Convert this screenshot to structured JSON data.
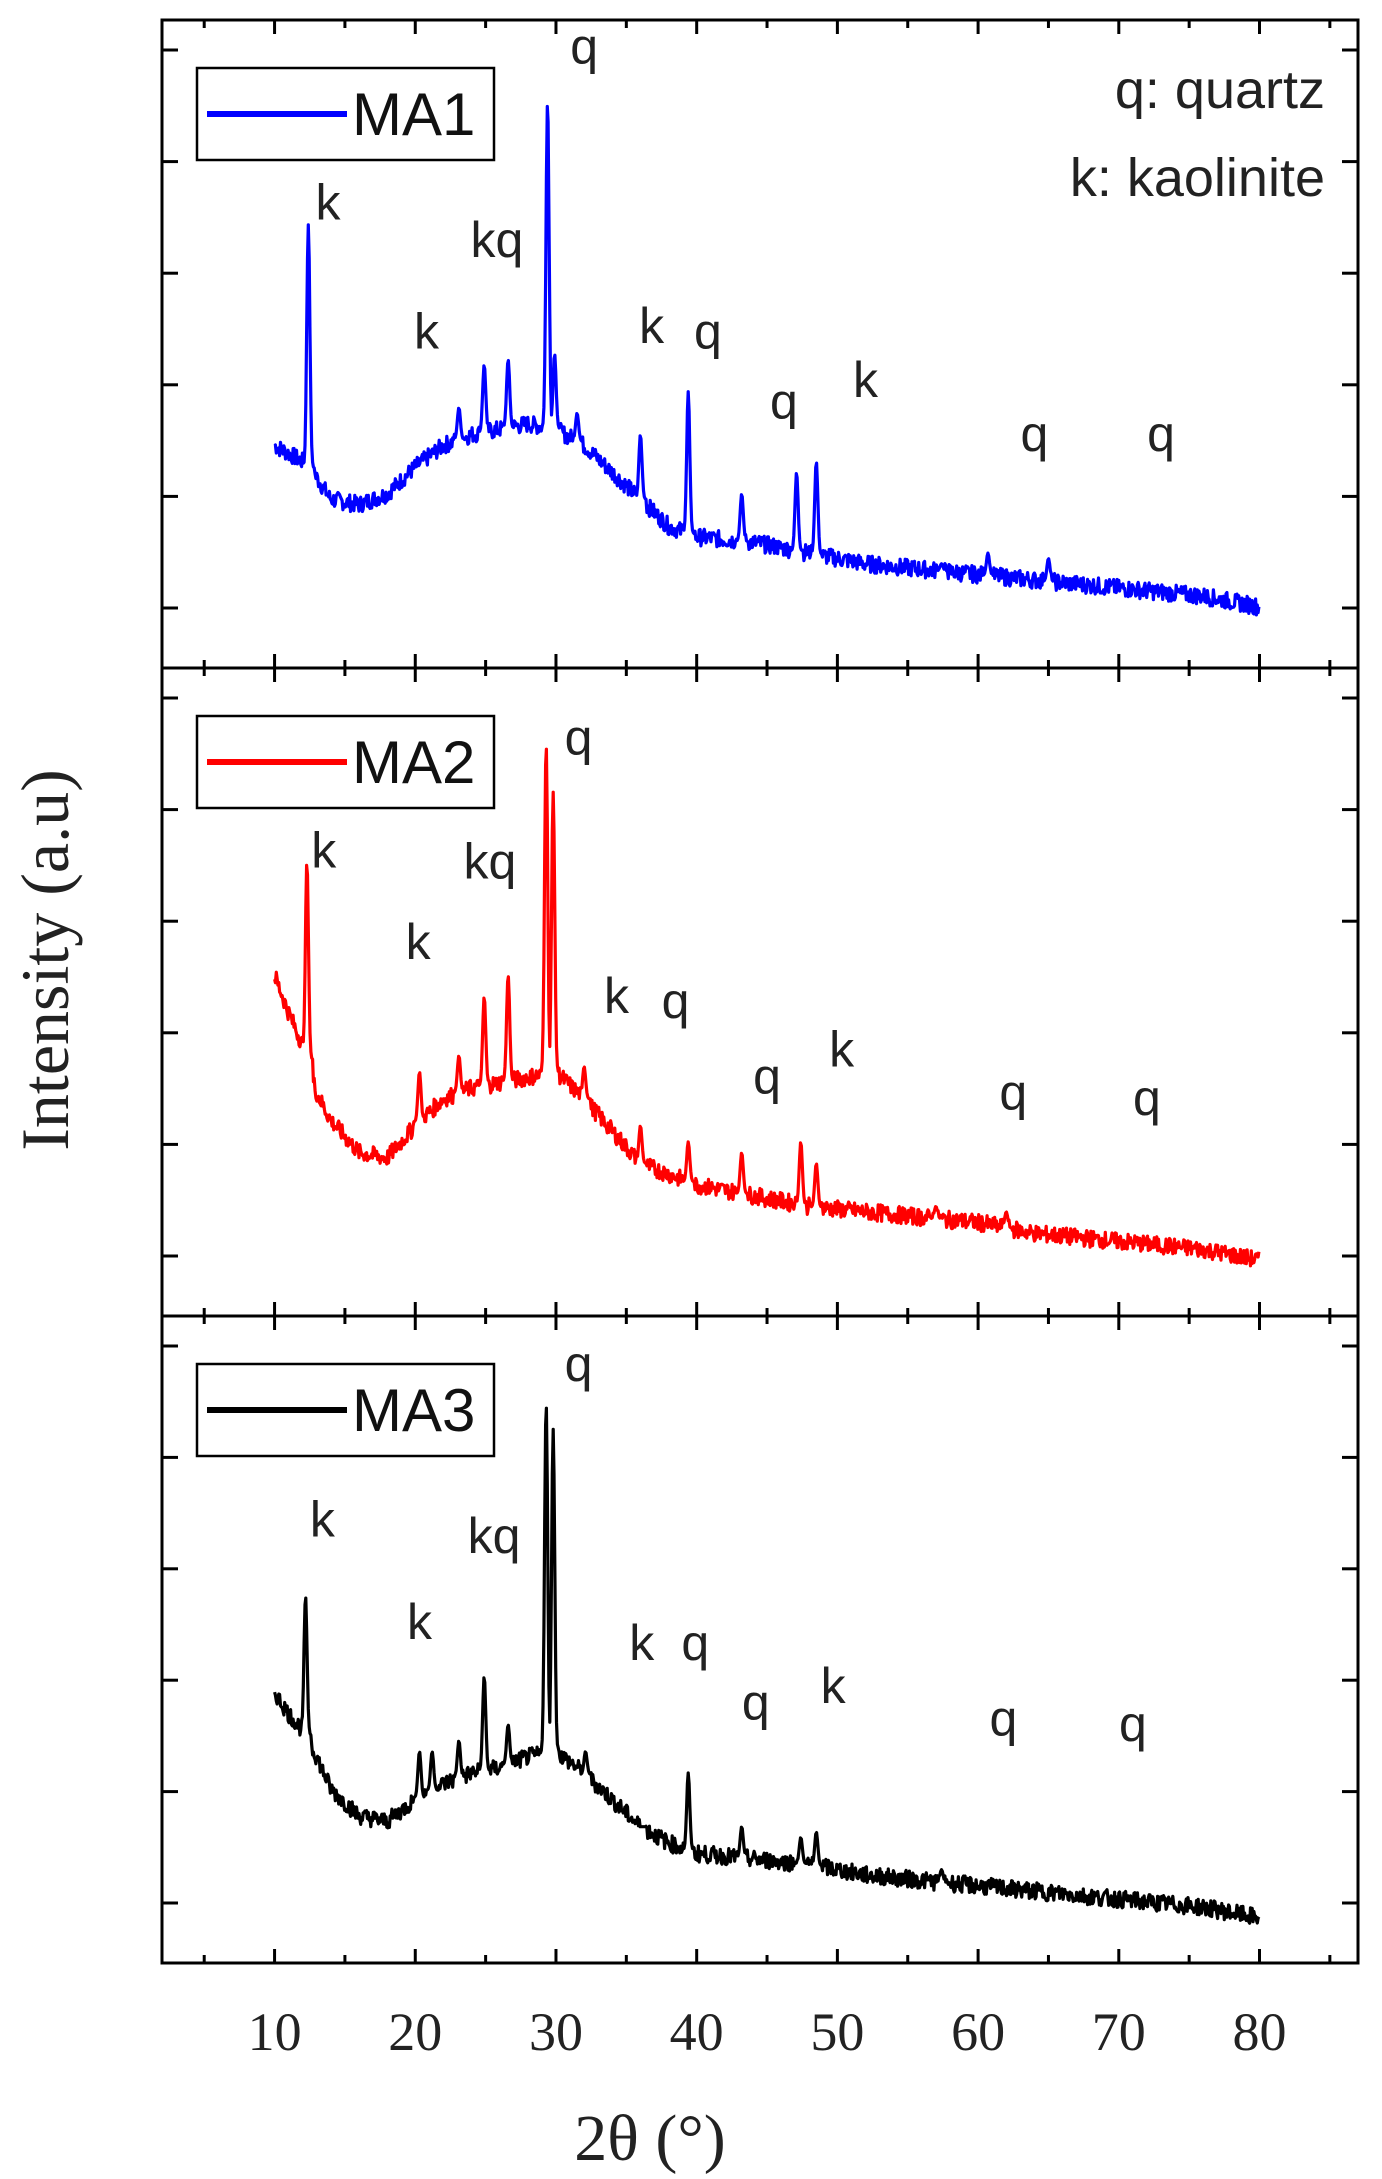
{
  "figure": {
    "ylabel": "Intensity (a.u)",
    "xlabel": "2θ (°)",
    "annotation_lines": [
      "q: quartz",
      "k: kaolinite"
    ]
  },
  "colors": {
    "MA1": "#0000ff",
    "MA2": "#ff0000",
    "MA3": "#000000",
    "frame": "#000000",
    "text": "#222222"
  },
  "chart_data": {
    "type": "line",
    "title": "",
    "xlabel": "2θ (°)",
    "ylabel": "Intensity (a.u)",
    "xlim": [
      2,
      87
    ],
    "xticks": [
      10,
      20,
      30,
      40,
      50,
      60,
      70,
      80
    ],
    "x_range": [
      10,
      80
    ],
    "grid": false,
    "stacked_panels": true,
    "panels": [
      {
        "name": "MA1",
        "legend": "MA1",
        "legend_position": "top-left",
        "ylim": [
          0,
          100
        ],
        "baseline": [
          [
            10,
            33
          ],
          [
            12,
            30
          ],
          [
            13,
            27
          ],
          [
            14,
            23
          ],
          [
            16,
            22
          ],
          [
            18,
            24
          ],
          [
            20,
            29
          ],
          [
            22,
            33
          ],
          [
            24,
            35
          ],
          [
            26,
            36
          ],
          [
            28,
            37
          ],
          [
            30,
            36
          ],
          [
            32,
            33
          ],
          [
            34,
            28
          ],
          [
            36,
            23
          ],
          [
            38,
            18
          ],
          [
            40,
            16
          ],
          [
            44,
            15
          ],
          [
            48,
            13
          ],
          [
            52,
            11
          ],
          [
            56,
            10
          ],
          [
            60,
            9
          ],
          [
            64,
            8
          ],
          [
            68,
            7
          ],
          [
            72,
            6
          ],
          [
            76,
            5
          ],
          [
            80,
            3
          ]
        ],
        "peaks": [
          {
            "x": 12.4,
            "y": 74,
            "label": "k"
          },
          {
            "x": 23.1,
            "y": 40
          },
          {
            "x": 24.9,
            "y": 48
          },
          {
            "x": 26.6,
            "y": 49
          },
          {
            "x": 29.4,
            "y": 97,
            "label": "q"
          },
          {
            "x": 29.9,
            "y": 50
          },
          {
            "x": 31.5,
            "y": 39
          },
          {
            "x": 36.0,
            "y": 35,
            "label": "k"
          },
          {
            "x": 39.4,
            "y": 43,
            "label": "q"
          },
          {
            "x": 43.2,
            "y": 24
          },
          {
            "x": 47.1,
            "y": 28
          },
          {
            "x": 48.5,
            "y": 30
          },
          {
            "x": 57.4,
            "y": 11
          },
          {
            "x": 60.7,
            "y": 13
          },
          {
            "x": 65.0,
            "y": 12
          }
        ],
        "labels": [
          {
            "text": "k",
            "x": 13.8,
            "y": 75
          },
          {
            "text": "k",
            "x": 20.8,
            "y": 51
          },
          {
            "text": "kq",
            "x": 25.8,
            "y": 68
          },
          {
            "text": "q",
            "x": 32.0,
            "y": 104
          },
          {
            "text": "k",
            "x": 36.8,
            "y": 52
          },
          {
            "text": "q",
            "x": 40.8,
            "y": 51
          },
          {
            "text": "q",
            "x": 46.2,
            "y": 38
          },
          {
            "text": "k",
            "x": 52.0,
            "y": 42
          },
          {
            "text": "q",
            "x": 64.0,
            "y": 32
          },
          {
            "text": "q",
            "x": 73.0,
            "y": 32
          }
        ]
      },
      {
        "name": "MA2",
        "legend": "MA2",
        "legend_position": "top-left",
        "ylim": [
          0,
          100
        ],
        "baseline": [
          [
            10,
            55
          ],
          [
            11,
            48
          ],
          [
            12,
            42
          ],
          [
            13,
            33
          ],
          [
            14,
            28
          ],
          [
            16,
            22
          ],
          [
            18,
            21
          ],
          [
            20,
            27
          ],
          [
            22,
            32
          ],
          [
            24,
            34
          ],
          [
            26,
            35
          ],
          [
            28,
            36
          ],
          [
            30,
            37
          ],
          [
            32,
            32
          ],
          [
            34,
            26
          ],
          [
            36,
            20
          ],
          [
            38,
            18
          ],
          [
            40,
            16
          ],
          [
            44,
            14
          ],
          [
            48,
            12
          ],
          [
            52,
            11
          ],
          [
            56,
            10
          ],
          [
            60,
            9
          ],
          [
            64,
            7
          ],
          [
            68,
            6
          ],
          [
            72,
            5
          ],
          [
            76,
            4
          ],
          [
            80,
            2
          ]
        ],
        "peaks": [
          {
            "x": 12.3,
            "y": 76,
            "label": "k"
          },
          {
            "x": 20.3,
            "y": 37
          },
          {
            "x": 23.1,
            "y": 40
          },
          {
            "x": 24.9,
            "y": 51
          },
          {
            "x": 26.6,
            "y": 55
          },
          {
            "x": 29.3,
            "y": 98,
            "label": "q"
          },
          {
            "x": 29.8,
            "y": 89
          },
          {
            "x": 32.0,
            "y": 38
          },
          {
            "x": 36.0,
            "y": 27,
            "label": "k"
          },
          {
            "x": 39.4,
            "y": 24,
            "label": "q"
          },
          {
            "x": 43.2,
            "y": 22
          },
          {
            "x": 47.4,
            "y": 24
          },
          {
            "x": 48.5,
            "y": 20
          },
          {
            "x": 57.0,
            "y": 12
          },
          {
            "x": 62.0,
            "y": 11
          }
        ],
        "labels": [
          {
            "text": "k",
            "x": 13.5,
            "y": 75
          },
          {
            "text": "k",
            "x": 20.2,
            "y": 58
          },
          {
            "text": "kq",
            "x": 25.3,
            "y": 73
          },
          {
            "text": "q",
            "x": 31.6,
            "y": 96
          },
          {
            "text": "k",
            "x": 34.3,
            "y": 48
          },
          {
            "text": "q",
            "x": 38.5,
            "y": 47
          },
          {
            "text": "q",
            "x": 45.0,
            "y": 33
          },
          {
            "text": "k",
            "x": 50.3,
            "y": 38
          },
          {
            "text": "q",
            "x": 62.5,
            "y": 30
          },
          {
            "text": "q",
            "x": 72.0,
            "y": 29
          }
        ]
      },
      {
        "name": "MA3",
        "legend": "MA3",
        "legend_position": "top-left",
        "ylim": [
          0,
          100
        ],
        "baseline": [
          [
            10,
            42
          ],
          [
            11,
            38
          ],
          [
            12,
            35
          ],
          [
            13,
            30
          ],
          [
            14,
            24
          ],
          [
            16,
            19
          ],
          [
            18,
            18
          ],
          [
            20,
            22
          ],
          [
            22,
            25
          ],
          [
            24,
            27
          ],
          [
            26,
            28
          ],
          [
            28,
            30
          ],
          [
            30,
            31
          ],
          [
            32,
            27
          ],
          [
            34,
            22
          ],
          [
            36,
            17
          ],
          [
            38,
            14
          ],
          [
            40,
            12
          ],
          [
            44,
            11
          ],
          [
            48,
            10
          ],
          [
            52,
            8
          ],
          [
            56,
            7
          ],
          [
            60,
            6
          ],
          [
            64,
            5
          ],
          [
            68,
            4
          ],
          [
            72,
            3
          ],
          [
            76,
            2
          ],
          [
            80,
            0
          ]
        ],
        "peaks": [
          {
            "x": 12.2,
            "y": 60,
            "label": "k"
          },
          {
            "x": 20.3,
            "y": 31
          },
          {
            "x": 21.2,
            "y": 31
          },
          {
            "x": 23.1,
            "y": 33
          },
          {
            "x": 24.9,
            "y": 45
          },
          {
            "x": 26.6,
            "y": 36
          },
          {
            "x": 29.3,
            "y": 96,
            "label": "q"
          },
          {
            "x": 29.8,
            "y": 91
          },
          {
            "x": 32.1,
            "y": 31
          },
          {
            "x": 36.0,
            "y": 17,
            "label": "k"
          },
          {
            "x": 39.4,
            "y": 27,
            "label": "q"
          },
          {
            "x": 43.2,
            "y": 17
          },
          {
            "x": 47.4,
            "y": 15
          },
          {
            "x": 48.5,
            "y": 16
          },
          {
            "x": 57.4,
            "y": 9
          }
        ],
        "labels": [
          {
            "text": "k",
            "x": 13.4,
            "y": 71
          },
          {
            "text": "k",
            "x": 20.3,
            "y": 52
          },
          {
            "text": "kq",
            "x": 25.6,
            "y": 68
          },
          {
            "text": "q",
            "x": 31.6,
            "y": 100
          },
          {
            "text": "k",
            "x": 36.1,
            "y": 48
          },
          {
            "text": "q",
            "x": 39.9,
            "y": 48
          },
          {
            "text": "q",
            "x": 44.2,
            "y": 37
          },
          {
            "text": "k",
            "x": 49.7,
            "y": 40
          },
          {
            "text": "q",
            "x": 61.8,
            "y": 34
          },
          {
            "text": "q",
            "x": 71.0,
            "y": 33
          }
        ]
      }
    ]
  }
}
